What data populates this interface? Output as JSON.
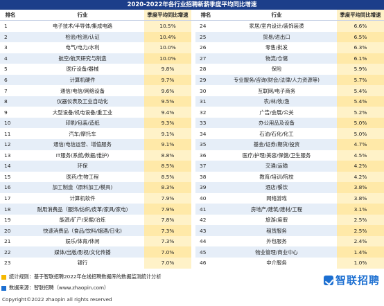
{
  "title": "2020-2022年各行业招聘新薪季度平均同比增速",
  "headers": {
    "rank": "排名",
    "industry": "行业",
    "growth": "季度平均同比增速"
  },
  "left": [
    {
      "rank": "1",
      "industry": "电子技术/半导体/集成电路",
      "growth": "10.5%"
    },
    {
      "rank": "2",
      "industry": "检验/检测/认证",
      "growth": "10.4%"
    },
    {
      "rank": "3",
      "industry": "电气/电力/水利",
      "growth": "10.0%"
    },
    {
      "rank": "4",
      "industry": "航空/航天研究与制造",
      "growth": "10.0%"
    },
    {
      "rank": "5",
      "industry": "医疗设备/器械",
      "growth": "9.8%"
    },
    {
      "rank": "6",
      "industry": "计算机硬件",
      "growth": "9.7%"
    },
    {
      "rank": "7",
      "industry": "通信/电信/网络设备",
      "growth": "9.6%"
    },
    {
      "rank": "8",
      "industry": "仪器仪表及工业自动化",
      "growth": "9.5%"
    },
    {
      "rank": "9",
      "industry": "大型设备/机电设备/重工业",
      "growth": "9.4%"
    },
    {
      "rank": "10",
      "industry": "印刷/包装/造纸",
      "growth": "9.3%"
    },
    {
      "rank": "11",
      "industry": "汽车/摩托车",
      "growth": "9.1%"
    },
    {
      "rank": "12",
      "industry": "通信/电信运营、增值服务",
      "growth": "9.1%"
    },
    {
      "rank": "13",
      "industry": "IT服务(系统/数据/维护)",
      "growth": "8.8%"
    },
    {
      "rank": "14",
      "industry": "环保",
      "growth": "8.5%"
    },
    {
      "rank": "15",
      "industry": "医药/生物工程",
      "growth": "8.5%"
    },
    {
      "rank": "16",
      "industry": "加工制造（原料加工/模具)",
      "growth": "8.3%"
    },
    {
      "rank": "17",
      "industry": "计算机软件",
      "growth": "7.9%"
    },
    {
      "rank": "18",
      "industry": "耐用消费品（服饰/纺织/皮革/家具/家电)",
      "growth": "7.9%"
    },
    {
      "rank": "19",
      "industry": "能源/矿产/采掘/冶炼",
      "growth": "7.8%"
    },
    {
      "rank": "20",
      "industry": "快速消费品（食品/饮料/烟酒/日化)",
      "growth": "7.3%"
    },
    {
      "rank": "21",
      "industry": "娱乐/体育/休闲",
      "growth": "7.3%"
    },
    {
      "rank": "22",
      "industry": "媒体/出版/影视/文化传播",
      "growth": "7.0%"
    },
    {
      "rank": "23",
      "industry": "银行",
      "growth": "7.0%"
    }
  ],
  "right": [
    {
      "rank": "24",
      "industry": "家居/室内设计/装饰装潢",
      "growth": "6.6%"
    },
    {
      "rank": "25",
      "industry": "贸易/进出口",
      "growth": "6.5%"
    },
    {
      "rank": "26",
      "industry": "零售/批发",
      "growth": "6.3%"
    },
    {
      "rank": "27",
      "industry": "物流/仓储",
      "growth": "6.1%"
    },
    {
      "rank": "28",
      "industry": "保险",
      "growth": "5.9%"
    },
    {
      "rank": "29",
      "industry": "专业服务/咨询(财会/法律/人力资源等)",
      "growth": "5.7%"
    },
    {
      "rank": "30",
      "industry": "互联网/电子商务",
      "growth": "5.4%"
    },
    {
      "rank": "31",
      "industry": "农/林/牧/渔",
      "growth": "5.4%"
    },
    {
      "rank": "32",
      "industry": "广告/会展/公关",
      "growth": "5.2%"
    },
    {
      "rank": "33",
      "industry": "办公用品及设备",
      "growth": "5.0%"
    },
    {
      "rank": "34",
      "industry": "石油/石化/化工",
      "growth": "5.0%"
    },
    {
      "rank": "35",
      "industry": "基金/证券/期货/投资",
      "growth": "4.7%"
    },
    {
      "rank": "36",
      "industry": "医疗/护理/美容/保健/卫生服务",
      "growth": "4.5%"
    },
    {
      "rank": "37",
      "industry": "交通/运输",
      "growth": "4.2%"
    },
    {
      "rank": "38",
      "industry": "教育/培训/院校",
      "growth": "4.2%"
    },
    {
      "rank": "39",
      "industry": "酒店/餐饮",
      "growth": "3.8%"
    },
    {
      "rank": "40",
      "industry": "网络游戏",
      "growth": "3.8%"
    },
    {
      "rank": "41",
      "industry": "房地产/建筑/建材/工程",
      "growth": "3.1%"
    },
    {
      "rank": "42",
      "industry": "旅游/度假",
      "growth": "2.5%"
    },
    {
      "rank": "43",
      "industry": "租赁服务",
      "growth": "2.5%"
    },
    {
      "rank": "44",
      "industry": "外包服务",
      "growth": "2.4%"
    },
    {
      "rank": "45",
      "industry": "物业管理/商业中心",
      "growth": "1.4%"
    },
    {
      "rank": "46",
      "industry": "中介服务",
      "growth": "1.0%"
    }
  ],
  "footer": {
    "note": "统计规则：基于智联招聘2022年在线招聘数据库的数据监测统计分析",
    "source": "数据来源：智联招聘（www.zhaopin.com）",
    "copyright": "Copyright©2022 zhaopin all rights reserved",
    "logo": "智联招聘"
  },
  "colors": {
    "header_bar": "#1c3e8a",
    "stripe": "#e6eef8",
    "highlight": "#fff2c8",
    "logo": "#1c6fd1"
  }
}
